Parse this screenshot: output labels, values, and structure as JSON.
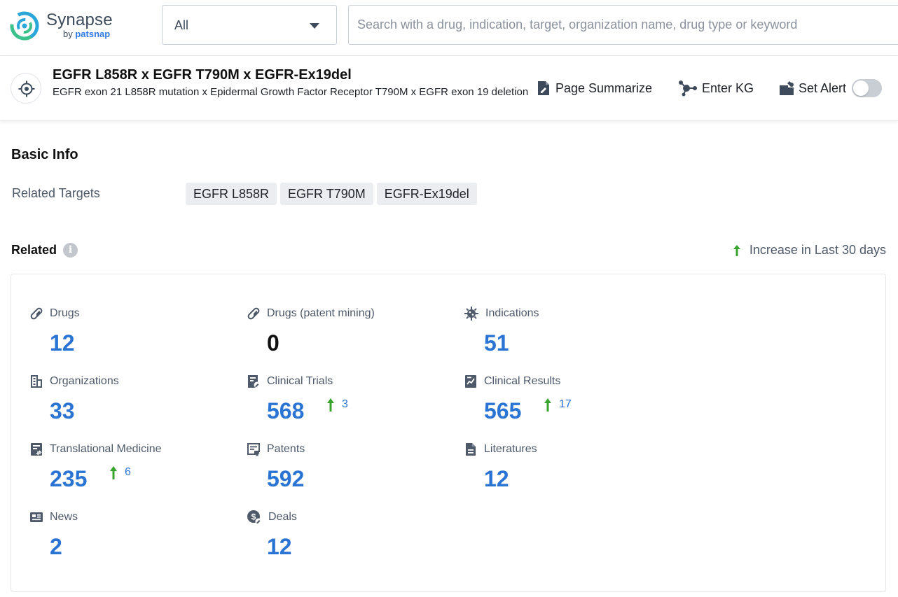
{
  "brand": {
    "name": "Synapse",
    "by": "by",
    "partner": "patsnap"
  },
  "search": {
    "scope": "All",
    "placeholder": "Search with a drug, indication, target, organization name, drug type or keyword"
  },
  "entity": {
    "title": "EGFR L858R x EGFR T790M x EGFR-Ex19del",
    "subtitle": "EGFR exon 21 L858R mutation x Epidermal Growth Factor Receptor T790M x EGFR exon 19 deletion"
  },
  "actions": {
    "summarize": "Page Summarize",
    "kg": "Enter KG",
    "alert": "Set Alert"
  },
  "basic_info": {
    "heading": "Basic Info",
    "related_targets_label": "Related Targets",
    "targets": [
      "EGFR L858R",
      "EGFR T790M",
      "EGFR-Ex19del"
    ]
  },
  "related": {
    "heading": "Related",
    "increase_legend": "Increase in Last 30 days",
    "stats": [
      {
        "label": "Drugs",
        "value": "12",
        "increase": "",
        "icon": "pill-icon"
      },
      {
        "label": "Drugs (patent mining)",
        "value": "0",
        "increase": "",
        "icon": "pill-icon"
      },
      {
        "label": "Indications",
        "value": "51",
        "increase": "",
        "icon": "virus-icon"
      },
      {
        "label": "Organizations",
        "value": "33",
        "increase": "",
        "icon": "building-icon"
      },
      {
        "label": "Clinical Trials",
        "value": "568",
        "increase": "3",
        "icon": "clinical-trial-icon"
      },
      {
        "label": "Clinical Results",
        "value": "565",
        "increase": "17",
        "icon": "chart-doc-icon"
      },
      {
        "label": "Translational Medicine",
        "value": "235",
        "increase": "6",
        "icon": "translational-icon"
      },
      {
        "label": "Patents",
        "value": "592",
        "increase": "",
        "icon": "patent-icon"
      },
      {
        "label": "Literatures",
        "value": "12",
        "increase": "",
        "icon": "document-icon"
      },
      {
        "label": "News",
        "value": "2",
        "increase": "",
        "icon": "news-icon"
      },
      {
        "label": "Deals",
        "value": "12",
        "increase": "",
        "icon": "deal-icon"
      }
    ]
  },
  "colors": {
    "accent": "#2a74d4",
    "increase": "#3aa32f",
    "icon": "#4e5969"
  }
}
